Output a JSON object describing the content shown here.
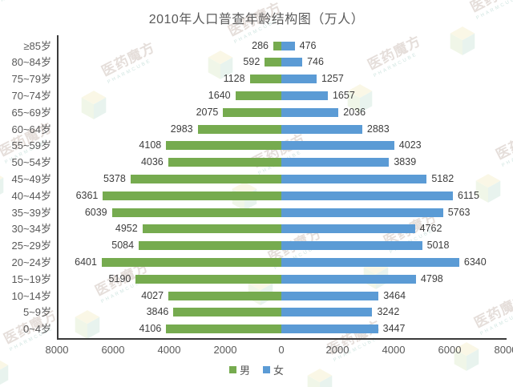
{
  "title": "2010年人口普查年龄结构图（万人）",
  "legend": {
    "male": "男",
    "female": "女"
  },
  "watermark": {
    "name": "医药魔方",
    "sub": "PHARMCUBE"
  },
  "colors": {
    "male_bar": "#76AB4F",
    "female_bar": "#5B9BD5",
    "axis_line": "#3a3a3a",
    "text": "#595959",
    "value_label": "#3d3d3d"
  },
  "chart_data": {
    "type": "bar",
    "subtype": "population-pyramid",
    "orientation": "horizontal",
    "title": "2010年人口普查年龄结构图（万人）",
    "categories": [
      "≥85岁",
      "80~84岁",
      "75~79岁",
      "70~74岁",
      "65~69岁",
      "60~64岁",
      "55~59岁",
      "50~54岁",
      "45~49岁",
      "40~44岁",
      "35~39岁",
      "30~34岁",
      "25~29岁",
      "20~24岁",
      "15~19岁",
      "10~14岁",
      "5~9岁",
      "0~4岁"
    ],
    "series": [
      {
        "name": "男",
        "side": "left",
        "color": "#76AB4F",
        "values": [
          286,
          592,
          1128,
          1640,
          2075,
          2983,
          4108,
          4036,
          5378,
          6361,
          6039,
          4952,
          5084,
          6401,
          5190,
          4027,
          3846,
          4106
        ]
      },
      {
        "name": "女",
        "side": "right",
        "color": "#5B9BD5",
        "values": [
          476,
          746,
          1257,
          1657,
          2036,
          2883,
          4023,
          3839,
          5182,
          6115,
          5763,
          4762,
          5018,
          6340,
          4798,
          3464,
          3242,
          3447
        ]
      }
    ],
    "x_ticks": [
      "8000",
      "6000",
      "4000",
      "2000",
      "0",
      "2000",
      "4000",
      "6000",
      "8000"
    ],
    "xlim": [
      -8000,
      8000
    ],
    "unit": "万人",
    "data_labels": true,
    "grid": false,
    "legend_position": "bottom"
  }
}
